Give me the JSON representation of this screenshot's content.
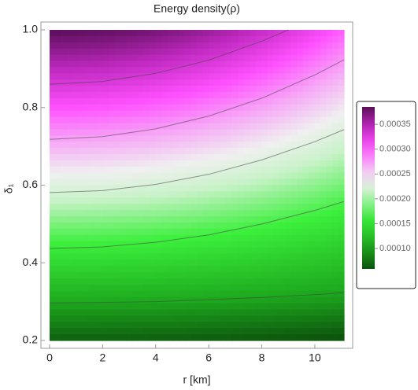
{
  "chart_data": {
    "type": "density",
    "title": "Energy density(ρ)",
    "x_label": "r [km]",
    "y_label": "δ₁",
    "xlim": [
      0,
      11.1
    ],
    "ylim": [
      0.2,
      1.0
    ],
    "xticks": [
      0,
      2,
      4,
      6,
      8,
      10
    ],
    "yticks": [
      0.2,
      0.4,
      0.6,
      0.8,
      {
        "value": 1,
        "label": "1.0"
      }
    ],
    "contours": [
      {
        "x": [
          0,
          2,
          4,
          6,
          8,
          10,
          11.1
        ],
        "values": [
          0.297,
          0.298,
          0.3,
          0.305,
          0.311,
          0.318,
          0.323
        ]
      },
      {
        "x": [
          0,
          2,
          4,
          6,
          8,
          10,
          11.1
        ],
        "values": [
          0.437,
          0.441,
          0.453,
          0.472,
          0.5,
          0.535,
          0.558
        ]
      },
      {
        "x": [
          0,
          2,
          4,
          6,
          8,
          10,
          11.1
        ],
        "values": [
          0.581,
          0.586,
          0.602,
          0.628,
          0.665,
          0.712,
          0.743
        ]
      },
      {
        "x": [
          0,
          2,
          4,
          6,
          8,
          10,
          11.1
        ],
        "values": [
          0.718,
          0.725,
          0.745,
          0.778,
          0.824,
          0.884,
          0.923
        ]
      },
      {
        "x": [
          0,
          2,
          4,
          6,
          8,
          9
        ],
        "values": [
          0.86,
          0.867,
          0.888,
          0.922,
          0.971,
          1.0
        ]
      }
    ],
    "colorbar": {
      "lim": [
        5.89e-05,
        0.000385
      ],
      "ticks": [
        {
          "value": 0.0001,
          "label": "0.00010"
        },
        {
          "value": 0.00015,
          "label": "0.00015"
        },
        {
          "value": 0.0002,
          "label": "0.00020"
        },
        {
          "value": 0.00025,
          "label": "0.00025"
        },
        {
          "value": 0.0003,
          "label": "0.00030"
        },
        {
          "value": 0.00035,
          "label": "0.00035"
        }
      ]
    }
  }
}
